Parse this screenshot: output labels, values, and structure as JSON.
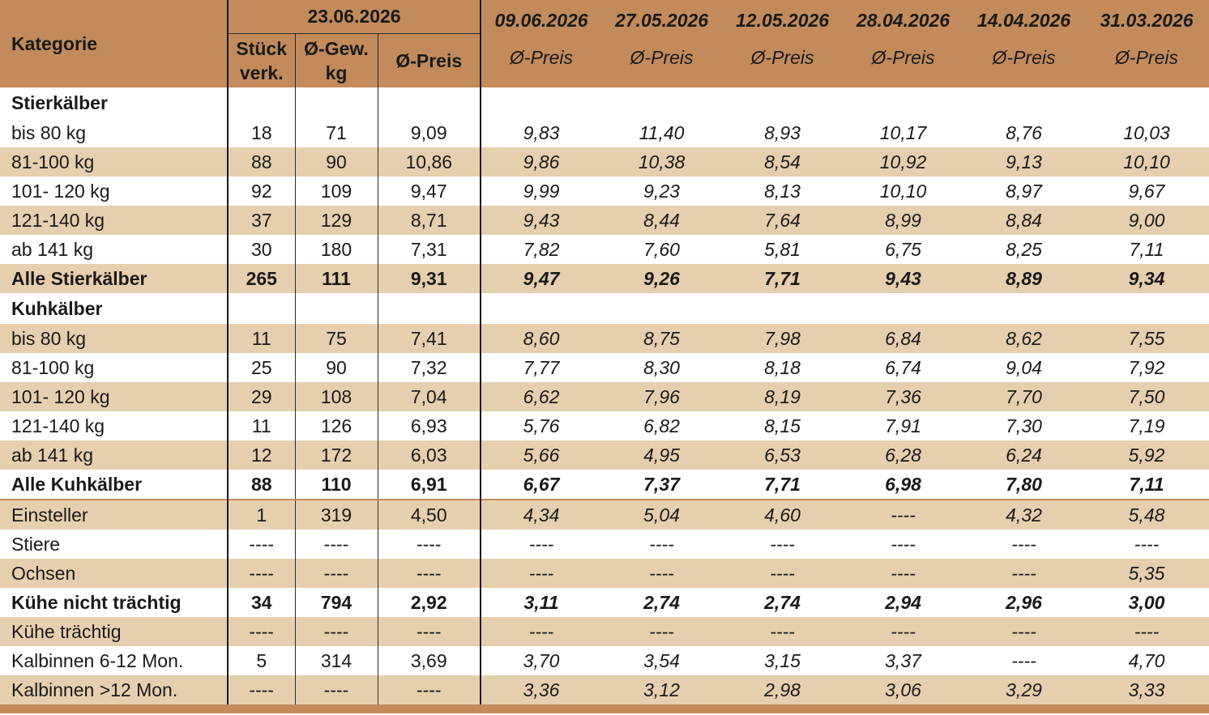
{
  "header": {
    "kategorie": "Kategorie",
    "current_date": "23.06.2026",
    "col_stueck": "Stück verk.",
    "col_gew": "Ø-Gew. kg",
    "col_preis": "Ø-Preis",
    "prev_dates": [
      "09.06.2026",
      "27.05.2026",
      "12.05.2026",
      "28.04.2026",
      "14.04.2026",
      "31.03.2026"
    ],
    "prev_label": "Ø-Preis"
  },
  "rows": [
    {
      "label": "Stierkälber",
      "type": "section",
      "cells": [
        "",
        "",
        "",
        "",
        "",
        "",
        "",
        "",
        ""
      ]
    },
    {
      "label": "bis 80 kg",
      "type": "white",
      "cells": [
        "18",
        "71",
        "9,09",
        "9,83",
        "11,40",
        "8,93",
        "10,17",
        "8,76",
        "10,03"
      ]
    },
    {
      "label": "81-100 kg",
      "type": "shade",
      "cells": [
        "88",
        "90",
        "10,86",
        "9,86",
        "10,38",
        "8,54",
        "10,92",
        "9,13",
        "10,10"
      ]
    },
    {
      "label": "101- 120 kg",
      "type": "white",
      "cells": [
        "92",
        "109",
        "9,47",
        "9,99",
        "9,23",
        "8,13",
        "10,10",
        "8,97",
        "9,67"
      ]
    },
    {
      "label": "121-140 kg",
      "type": "shade",
      "cells": [
        "37",
        "129",
        "8,71",
        "9,43",
        "8,44",
        "7,64",
        "8,99",
        "8,84",
        "9,00"
      ]
    },
    {
      "label": "ab 141 kg",
      "type": "white",
      "cells": [
        "30",
        "180",
        "7,31",
        "7,82",
        "7,60",
        "5,81",
        "6,75",
        "8,25",
        "7,11"
      ]
    },
    {
      "label": "Alle Stierkälber",
      "type": "shade-bold",
      "cells": [
        "265",
        "111",
        "9,31",
        "9,47",
        "9,26",
        "7,71",
        "9,43",
        "8,89",
        "9,34"
      ]
    },
    {
      "label": "Kuhkälber",
      "type": "section-white",
      "cells": [
        "",
        "",
        "",
        "",
        "",
        "",
        "",
        "",
        ""
      ]
    },
    {
      "label": "bis 80 kg",
      "type": "shade",
      "cells": [
        "11",
        "75",
        "7,41",
        "8,60",
        "8,75",
        "7,98",
        "6,84",
        "8,62",
        "7,55"
      ]
    },
    {
      "label": "81-100 kg",
      "type": "white",
      "cells": [
        "25",
        "90",
        "7,32",
        "7,77",
        "8,30",
        "8,18",
        "6,74",
        "9,04",
        "7,92"
      ]
    },
    {
      "label": "101- 120 kg",
      "type": "shade",
      "cells": [
        "29",
        "108",
        "7,04",
        "6,62",
        "7,96",
        "8,19",
        "7,36",
        "7,70",
        "7,50"
      ]
    },
    {
      "label": "121-140 kg",
      "type": "white",
      "cells": [
        "11",
        "126",
        "6,93",
        "5,76",
        "6,82",
        "8,15",
        "7,91",
        "7,30",
        "7,19"
      ]
    },
    {
      "label": "ab 141 kg",
      "type": "shade",
      "cells": [
        "12",
        "172",
        "6,03",
        "5,66",
        "4,95",
        "6,53",
        "6,28",
        "6,24",
        "5,92"
      ]
    },
    {
      "label": "Alle Kuhkälber",
      "type": "white-bold",
      "cells": [
        "88",
        "110",
        "6,91",
        "6,67",
        "7,37",
        "7,71",
        "6,98",
        "7,80",
        "7,11"
      ]
    },
    {
      "label": "Einsteller",
      "type": "shade-divtop",
      "cells": [
        "1",
        "319",
        "4,50",
        "4,34",
        "5,04",
        "4,60",
        "----",
        "4,32",
        "5,48"
      ]
    },
    {
      "label": "Stiere",
      "type": "white",
      "cells": [
        "----",
        "----",
        "----",
        "----",
        "----",
        "----",
        "----",
        "----",
        "----"
      ]
    },
    {
      "label": "Ochsen",
      "type": "shade",
      "cells": [
        "----",
        "----",
        "----",
        "----",
        "----",
        "----",
        "----",
        "----",
        "5,35"
      ]
    },
    {
      "label": "Kühe nicht trächtig",
      "type": "white-bold",
      "cells": [
        "34",
        "794",
        "2,92",
        "3,11",
        "2,74",
        "2,74",
        "2,94",
        "2,96",
        "3,00"
      ]
    },
    {
      "label": "Kühe trächtig",
      "type": "shade",
      "cells": [
        "----",
        "----",
        "----",
        "----",
        "----",
        "----",
        "----",
        "----",
        "----"
      ]
    },
    {
      "label": "Kalbinnen 6-12 Mon.",
      "type": "white",
      "cells": [
        "5",
        "314",
        "3,69",
        "3,70",
        "3,54",
        "3,15",
        "3,37",
        "----",
        "4,70"
      ]
    },
    {
      "label": "Kalbinnen >12 Mon.",
      "type": "shade",
      "cells": [
        "----",
        "----",
        "----",
        "3,36",
        "3,12",
        "2,98",
        "3,06",
        "3,29",
        "3,33"
      ]
    }
  ]
}
